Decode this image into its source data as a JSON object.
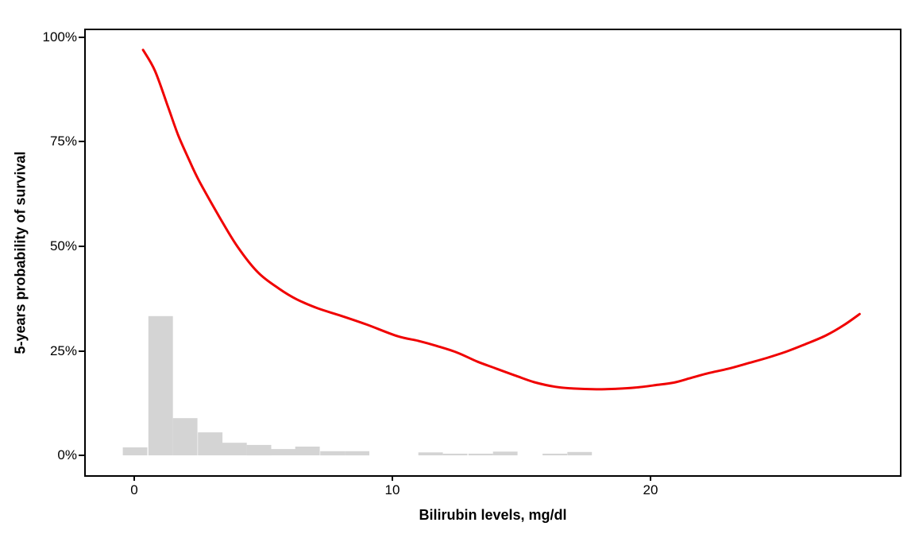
{
  "figure": {
    "background": "#FFFFFF",
    "panel_border_color": "#000000",
    "text_color": "#000000"
  },
  "chart_data": {
    "type": "line+histogram",
    "title": "",
    "xlabel": "Bilirubin levels, mg/dl",
    "ylabel": "5-years probability of survival",
    "grid": "off",
    "legend": "none",
    "x_axis": {
      "min": -1.88,
      "max": 29.66,
      "ticks": [
        {
          "label": "0",
          "value": 0
        },
        {
          "label": "10",
          "value": 10
        },
        {
          "label": "20",
          "value": 20
        }
      ]
    },
    "y_axis": {
      "min": -4.75,
      "max": 101.71,
      "unit": "%",
      "ticks": [
        {
          "label": "0%",
          "value": 0
        },
        {
          "label": "25%",
          "value": 25
        },
        {
          "label": "50%",
          "value": 50
        },
        {
          "label": "75%",
          "value": 75
        },
        {
          "label": "100%",
          "value": 100
        }
      ]
    },
    "series": [
      {
        "name": "survival-smooth-curve",
        "type": "line",
        "color": "#F00000",
        "stroke_width": 3,
        "points": [
          [
            0.34,
            97.0
          ],
          [
            0.8,
            92.0
          ],
          [
            1.3,
            83.5
          ],
          [
            1.7,
            76.6
          ],
          [
            2.1,
            71.0
          ],
          [
            2.5,
            65.8
          ],
          [
            3.3,
            57.0
          ],
          [
            4.0,
            49.9
          ],
          [
            4.8,
            43.7
          ],
          [
            5.6,
            39.9
          ],
          [
            6.3,
            37.3
          ],
          [
            7.1,
            35.2
          ],
          [
            8.0,
            33.4
          ],
          [
            9.0,
            31.3
          ],
          [
            10.2,
            28.5
          ],
          [
            11.0,
            27.4
          ],
          [
            11.7,
            26.2
          ],
          [
            12.5,
            24.6
          ],
          [
            13.3,
            22.4
          ],
          [
            14.0,
            20.8
          ],
          [
            14.8,
            19.0
          ],
          [
            15.5,
            17.5
          ],
          [
            16.3,
            16.4
          ],
          [
            17.0,
            16.0
          ],
          [
            17.9,
            15.8
          ],
          [
            18.6,
            15.9
          ],
          [
            19.4,
            16.2
          ],
          [
            20.2,
            16.8
          ],
          [
            20.9,
            17.4
          ],
          [
            21.5,
            18.4
          ],
          [
            22.2,
            19.6
          ],
          [
            23.0,
            20.7
          ],
          [
            23.7,
            21.9
          ],
          [
            24.5,
            23.3
          ],
          [
            25.3,
            24.9
          ],
          [
            26.0,
            26.6
          ],
          [
            26.8,
            28.7
          ],
          [
            27.5,
            31.2
          ],
          [
            28.1,
            33.8
          ]
        ]
      },
      {
        "name": "bilirubin-histogram",
        "type": "bar",
        "color": "#D4D4D4",
        "bar_width": 0.95,
        "bars": [
          {
            "x": 0.03,
            "height": 1.9
          },
          {
            "x": 1.02,
            "height": 33.3
          },
          {
            "x": 1.97,
            "height": 8.9
          },
          {
            "x": 2.94,
            "height": 5.5
          },
          {
            "x": 3.88,
            "height": 3.0
          },
          {
            "x": 4.83,
            "height": 2.5
          },
          {
            "x": 5.77,
            "height": 1.5
          },
          {
            "x": 6.71,
            "height": 2.1
          },
          {
            "x": 7.68,
            "height": 1.0
          },
          {
            "x": 8.63,
            "height": 1.0
          },
          {
            "x": 11.48,
            "height": 0.7
          },
          {
            "x": 12.43,
            "height": 0.4
          },
          {
            "x": 13.42,
            "height": 0.4
          },
          {
            "x": 14.37,
            "height": 0.9
          },
          {
            "x": 16.29,
            "height": 0.4
          },
          {
            "x": 17.25,
            "height": 0.8
          }
        ]
      }
    ]
  }
}
